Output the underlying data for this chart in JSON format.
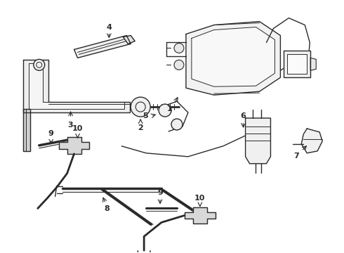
{
  "bg_color": "#ffffff",
  "lc": "#2a2a2a",
  "lw": 1.0,
  "figsize": [
    4.9,
    3.6
  ],
  "dpi": 100,
  "xlim": [
    0,
    490
  ],
  "ylim": [
    0,
    360
  ]
}
